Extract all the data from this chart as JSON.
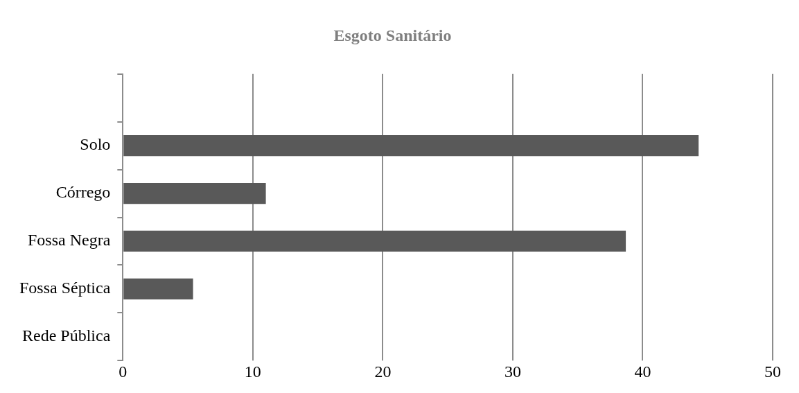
{
  "chart_data": {
    "type": "bar",
    "orientation": "horizontal",
    "title": "Esgoto Sanitário",
    "categories": [
      null,
      "Solo",
      "Córrego",
      "Fossa Negra",
      "Fossa Séptica",
      "Rede Pública"
    ],
    "values": [
      null,
      44.3,
      11.0,
      38.7,
      5.4,
      0
    ],
    "color": "#595959",
    "xlim": [
      0,
      50
    ],
    "xticks": [
      0,
      10,
      20,
      30,
      40,
      50
    ],
    "grid": "x",
    "legend": false
  }
}
